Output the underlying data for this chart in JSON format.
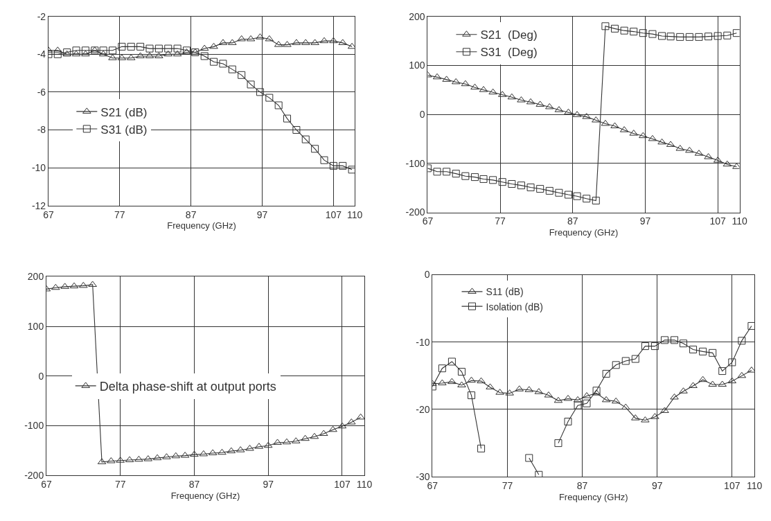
{
  "chart_data": [
    {
      "type": "line",
      "xlabel": "Frequency (GHz)",
      "xlim": [
        67,
        110
      ],
      "xticks": [
        67,
        77,
        87,
        97,
        107,
        110
      ],
      "ylim": [
        -12,
        -2
      ],
      "yticks": [
        -12,
        -10,
        -8,
        -6,
        -4,
        -2
      ],
      "grid": true,
      "legend": "left",
      "line_style": "solid",
      "x": [
        67,
        68.3,
        69.6,
        70.9,
        72.2,
        73.5,
        74.7,
        76,
        77.3,
        78.6,
        79.9,
        81.2,
        82.5,
        83.8,
        85.1,
        86.4,
        87.6,
        88.9,
        90.2,
        91.5,
        92.8,
        94.1,
        95.4,
        96.7,
        98,
        99.3,
        100.5,
        101.8,
        103.1,
        104.4,
        105.7,
        107,
        108.3,
        109.6
      ],
      "series": [
        {
          "name": "S21 (dB)",
          "color": "#333333",
          "marker": "triangle",
          "values": [
            -3.8,
            -3.8,
            -4.0,
            -4.0,
            -4.0,
            -3.8,
            -4.0,
            -4.2,
            -4.2,
            -4.2,
            -4.1,
            -4.1,
            -4.1,
            -4.0,
            -4.0,
            -3.9,
            -3.9,
            -3.7,
            -3.6,
            -3.4,
            -3.4,
            -3.2,
            -3.2,
            -3.1,
            -3.2,
            -3.5,
            -3.5,
            -3.4,
            -3.4,
            -3.4,
            -3.3,
            -3.3,
            -3.4,
            -3.6
          ]
        },
        {
          "name": "S31 (dB)",
          "color": "#333333",
          "marker": "square",
          "values": [
            -4.0,
            -4.0,
            -3.9,
            -3.8,
            -3.8,
            -3.8,
            -3.8,
            -3.8,
            -3.6,
            -3.6,
            -3.6,
            -3.7,
            -3.7,
            -3.7,
            -3.7,
            -3.8,
            -3.9,
            -4.1,
            -4.4,
            -4.5,
            -4.8,
            -5.1,
            -5.6,
            -6.0,
            -6.3,
            -6.7,
            -7.4,
            -8.0,
            -8.5,
            -9.0,
            -9.6,
            -9.9,
            -9.9,
            -10.1
          ]
        }
      ]
    },
    {
      "type": "line",
      "xlabel": "Frequency (GHz)",
      "xlim": [
        67,
        110
      ],
      "xticks": [
        67,
        77,
        87,
        97,
        107,
        110
      ],
      "ylim": [
        -200,
        200
      ],
      "yticks": [
        -200,
        -100,
        0,
        100,
        200
      ],
      "grid": true,
      "legend": "top left",
      "line_style": "solid",
      "x": [
        67,
        68.3,
        69.6,
        70.9,
        72.2,
        73.5,
        74.7,
        76,
        77.3,
        78.6,
        79.9,
        81.2,
        82.5,
        83.8,
        85.1,
        86.4,
        87.6,
        88.9,
        90.2,
        91.5,
        92.8,
        94.1,
        95.4,
        96.7,
        98,
        99.3,
        100.5,
        101.8,
        103.1,
        104.4,
        105.7,
        107,
        108.3,
        109.6
      ],
      "series": [
        {
          "name": "S21  (Deg)",
          "color": "#333333",
          "marker": "triangle",
          "values": [
            80,
            76,
            71,
            66,
            62,
            55,
            50,
            45,
            40,
            35,
            29,
            25,
            20,
            15,
            9,
            4,
            -1,
            -5,
            -12,
            -19,
            -24,
            -32,
            -39,
            -44,
            -50,
            -57,
            -62,
            -70,
            -74,
            -80,
            -87,
            -94,
            -102,
            -107
          ]
        },
        {
          "name": "S31  (Deg)",
          "color": "#333333",
          "marker": "square",
          "values": [
            -110,
            -117,
            -117,
            -121,
            -126,
            -128,
            -132,
            -134,
            -138,
            -142,
            -145,
            -149,
            -152,
            -156,
            -160,
            -164,
            -167,
            -172,
            -176,
            180,
            175,
            171,
            169,
            166,
            164,
            160,
            159,
            158,
            158,
            158,
            159,
            160,
            161,
            166
          ]
        }
      ]
    },
    {
      "type": "line",
      "xlabel": "Frequency (GHz)",
      "xlim": [
        67,
        110
      ],
      "xticks": [
        67,
        77,
        87,
        97,
        107,
        110
      ],
      "ylim": [
        -200,
        200
      ],
      "yticks": [
        -200,
        -100,
        0,
        100,
        200
      ],
      "grid": true,
      "legend": "left",
      "line_style": "solid",
      "x": [
        67,
        68.25,
        69.5,
        70.75,
        72,
        73.25,
        74.5,
        75.75,
        77,
        78.25,
        79.5,
        80.75,
        82,
        83.25,
        84.5,
        85.75,
        87,
        88.25,
        89.5,
        90.75,
        92,
        93.25,
        94.5,
        95.75,
        97,
        98.25,
        99.5,
        100.75,
        102,
        103.25,
        104.5,
        105.75,
        107,
        108.25,
        109.5
      ],
      "series": [
        {
          "name": "Delta phase-shift at output ports",
          "color": "#333333",
          "marker": "triangle",
          "values": [
            175,
            178,
            180,
            181,
            182,
            184,
            -173,
            -171,
            -170,
            -169,
            -168,
            -167,
            -165,
            -163,
            -161,
            -160,
            -158,
            -157,
            -155,
            -154,
            -151,
            -149,
            -146,
            -142,
            -140,
            -134,
            -133,
            -131,
            -126,
            -122,
            -116,
            -108,
            -101,
            -93,
            -83
          ]
        }
      ]
    },
    {
      "type": "line",
      "xlabel": "Frequency (GHz)",
      "xlim": [
        67,
        110
      ],
      "xticks": [
        67,
        77,
        87,
        97,
        107,
        110
      ],
      "ylim": [
        -30,
        0
      ],
      "yticks": [
        -30,
        -20,
        -10,
        0
      ],
      "grid": true,
      "legend": "top left",
      "line_style": "solid",
      "x": [
        67,
        68.3,
        69.6,
        70.9,
        72.2,
        73.5,
        74.7,
        76,
        77.3,
        78.6,
        79.9,
        81.2,
        82.5,
        83.8,
        85.1,
        86.4,
        87.6,
        88.9,
        90.2,
        91.5,
        92.8,
        94.1,
        95.4,
        96.7,
        98,
        99.3,
        100.5,
        101.8,
        103.1,
        104.4,
        105.7,
        107,
        108.3,
        109.6
      ],
      "series": [
        {
          "name": "S11 (dB)",
          "color": "#333333",
          "marker": "triangle",
          "values": [
            -16.2,
            -16.1,
            -15.9,
            -16.4,
            -15.7,
            -15.8,
            -16.7,
            -17.5,
            -17.6,
            -17.0,
            -17.1,
            -17.4,
            -17.9,
            -18.7,
            -18.4,
            -18.6,
            -18.0,
            -17.6,
            -18.6,
            -18.8,
            -19.7,
            -21.3,
            -21.6,
            -21.1,
            -20.2,
            -18.2,
            -17.3,
            -16.5,
            -15.6,
            -16.3,
            -16.3,
            -15.8,
            -15.0,
            -14.2
          ]
        },
        {
          "name": "Isolation (dB)",
          "color": "#333333",
          "marker": "square",
          "values": [
            -16.6,
            -13.9,
            -12.9,
            -14.4,
            -17.9,
            -25.8,
            null,
            null,
            null,
            null,
            -27.2,
            -29.7,
            null,
            -25.0,
            -21.8,
            -19.4,
            -19.1,
            -17.2,
            -14.7,
            -13.4,
            -12.8,
            -12.5,
            -10.6,
            -10.6,
            -9.7,
            -9.7,
            -10.2,
            -11.1,
            -11.4,
            -11.6,
            -14.3,
            -13.0,
            -9.8,
            -7.6
          ]
        }
      ]
    }
  ]
}
